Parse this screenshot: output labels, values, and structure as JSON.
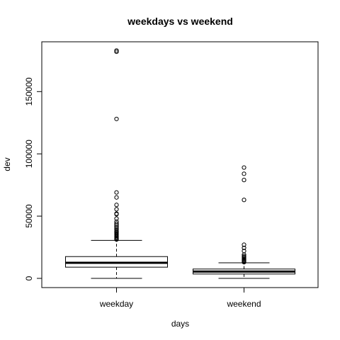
{
  "chart_data": {
    "type": "boxplot",
    "title": "weekdays vs weekend",
    "xlabel": "days",
    "ylabel": "dev",
    "categories": [
      "weekday",
      "weekend"
    ],
    "ylim": [
      -7400,
      190000
    ],
    "y_ticks": [
      0,
      50000,
      100000,
      150000
    ],
    "y_tick_labels": [
      "0",
      "50000",
      "100000",
      "150000"
    ],
    "grid": false,
    "legend": "none",
    "boxes": [
      {
        "name": "weekday",
        "whisker_low": 0,
        "q1": 9000,
        "median": 12500,
        "q3": 17500,
        "whisker_high": 30500,
        "outliers": [
          31200,
          31800,
          32500,
          33200,
          34000,
          34800,
          35500,
          36300,
          37000,
          38000,
          39000,
          40200,
          41500,
          42800,
          44000,
          45500,
          48000,
          51500,
          52000,
          55500,
          59000,
          65000,
          69000,
          128000,
          182000,
          183000
        ]
      },
      {
        "name": "weekend",
        "whisker_low": 0,
        "q1": 3500,
        "median": 5500,
        "q3": 7500,
        "whisker_high": 12500,
        "outliers": [
          13000,
          13600,
          14200,
          14800,
          15500,
          16200,
          17000,
          17800,
          19000,
          22000,
          24500,
          27000,
          63000,
          79000,
          84000,
          89000
        ]
      }
    ]
  }
}
